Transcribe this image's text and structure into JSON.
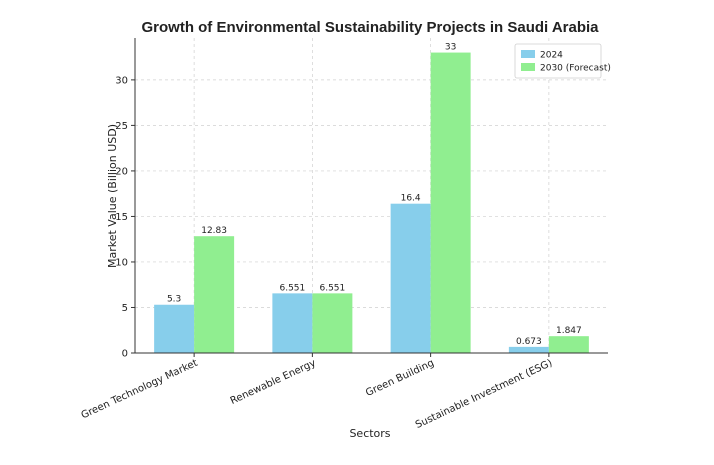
{
  "chart_data": {
    "type": "bar",
    "title": "Growth of Environmental Sustainability Projects in Saudi Arabia",
    "xlabel": "Sectors",
    "ylabel": "Market Value (Billion USD)",
    "categories": [
      "Green Technology Market",
      "Renewable Energy",
      "Green Building",
      "Sustainable Investment (ESG)"
    ],
    "series": [
      {
        "name": "2024",
        "color": "#87CEEB",
        "values": [
          5.3,
          6.551,
          16.4,
          0.673
        ]
      },
      {
        "name": "2030 (Forecast)",
        "color": "#90EE90",
        "values": [
          12.83,
          6.551,
          33,
          1.847
        ]
      }
    ],
    "ylim": [
      0,
      34.6
    ],
    "yticks": [
      0,
      5,
      10,
      15,
      20,
      25,
      30
    ],
    "grid": true,
    "legend_position": "top-right"
  }
}
